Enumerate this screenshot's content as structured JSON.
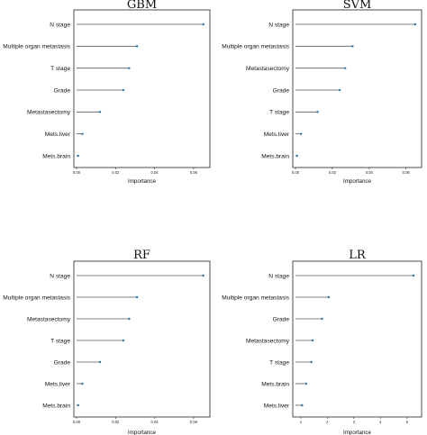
{
  "colors": {
    "point": "#1f77b4",
    "stem": "#555555",
    "frame": "#222222"
  },
  "chart_data": [
    {
      "type": "lollipop",
      "title": "GBM",
      "xlabel": "Importance",
      "ylabel": "",
      "xlim": [
        0.0,
        0.067
      ],
      "xticks": [
        0.0,
        0.02,
        0.04,
        0.06
      ],
      "xtick_labels": [
        "0.00",
        "0.02",
        "0.04",
        "0.06"
      ],
      "categories": [
        "N stage",
        "Multiple organ metastasis",
        "T stage",
        "Grade",
        "Metastasectomy",
        "Mets.liver",
        "Mets.brain"
      ],
      "values": [
        0.065,
        0.031,
        0.027,
        0.024,
        0.012,
        0.003,
        0.0008
      ]
    },
    {
      "type": "lollipop",
      "title": "SVM",
      "xlabel": "Importance",
      "ylabel": "",
      "xlim": [
        0.0,
        0.067
      ],
      "xticks": [
        0.0,
        0.02,
        0.04,
        0.06
      ],
      "xtick_labels": [
        "0.00",
        "0.02",
        "0.04",
        "0.06"
      ],
      "categories": [
        "N stage",
        "Multiple organ metastasis",
        "Metastasectomy",
        "Grade",
        "T stage",
        "Mets.liver",
        "Mets.brain"
      ],
      "values": [
        0.065,
        0.031,
        0.027,
        0.024,
        0.012,
        0.003,
        0.0008
      ]
    },
    {
      "type": "lollipop",
      "title": "RF",
      "xlabel": "Importance",
      "ylabel": "",
      "xlim": [
        0.0,
        0.067
      ],
      "xticks": [
        0.0,
        0.02,
        0.04,
        0.06
      ],
      "xtick_labels": [
        "0.00",
        "0.02",
        "0.04",
        "0.06"
      ],
      "categories": [
        "N stage",
        "Multiple organ metastasis",
        "Metastasectomy",
        "T stage",
        "Grade",
        "Mets.liver",
        "Mets.brain"
      ],
      "values": [
        0.065,
        0.031,
        0.027,
        0.024,
        0.012,
        0.003,
        0.0008
      ]
    },
    {
      "type": "lollipop",
      "title": "LR",
      "xlabel": "Importance",
      "ylabel": "",
      "xlim": [
        0.8,
        5.45
      ],
      "xticks": [
        1,
        2,
        3,
        4,
        5
      ],
      "xtick_labels": [
        "1",
        "2",
        "3",
        "4",
        "5"
      ],
      "categories": [
        "N stage",
        "Multiple organ metastasis",
        "Grade",
        "Metastasectomy",
        "T stage",
        "Mets.brain",
        "Mets.liver"
      ],
      "values": [
        5.25,
        2.05,
        1.8,
        1.45,
        1.4,
        1.2,
        1.05
      ]
    }
  ]
}
